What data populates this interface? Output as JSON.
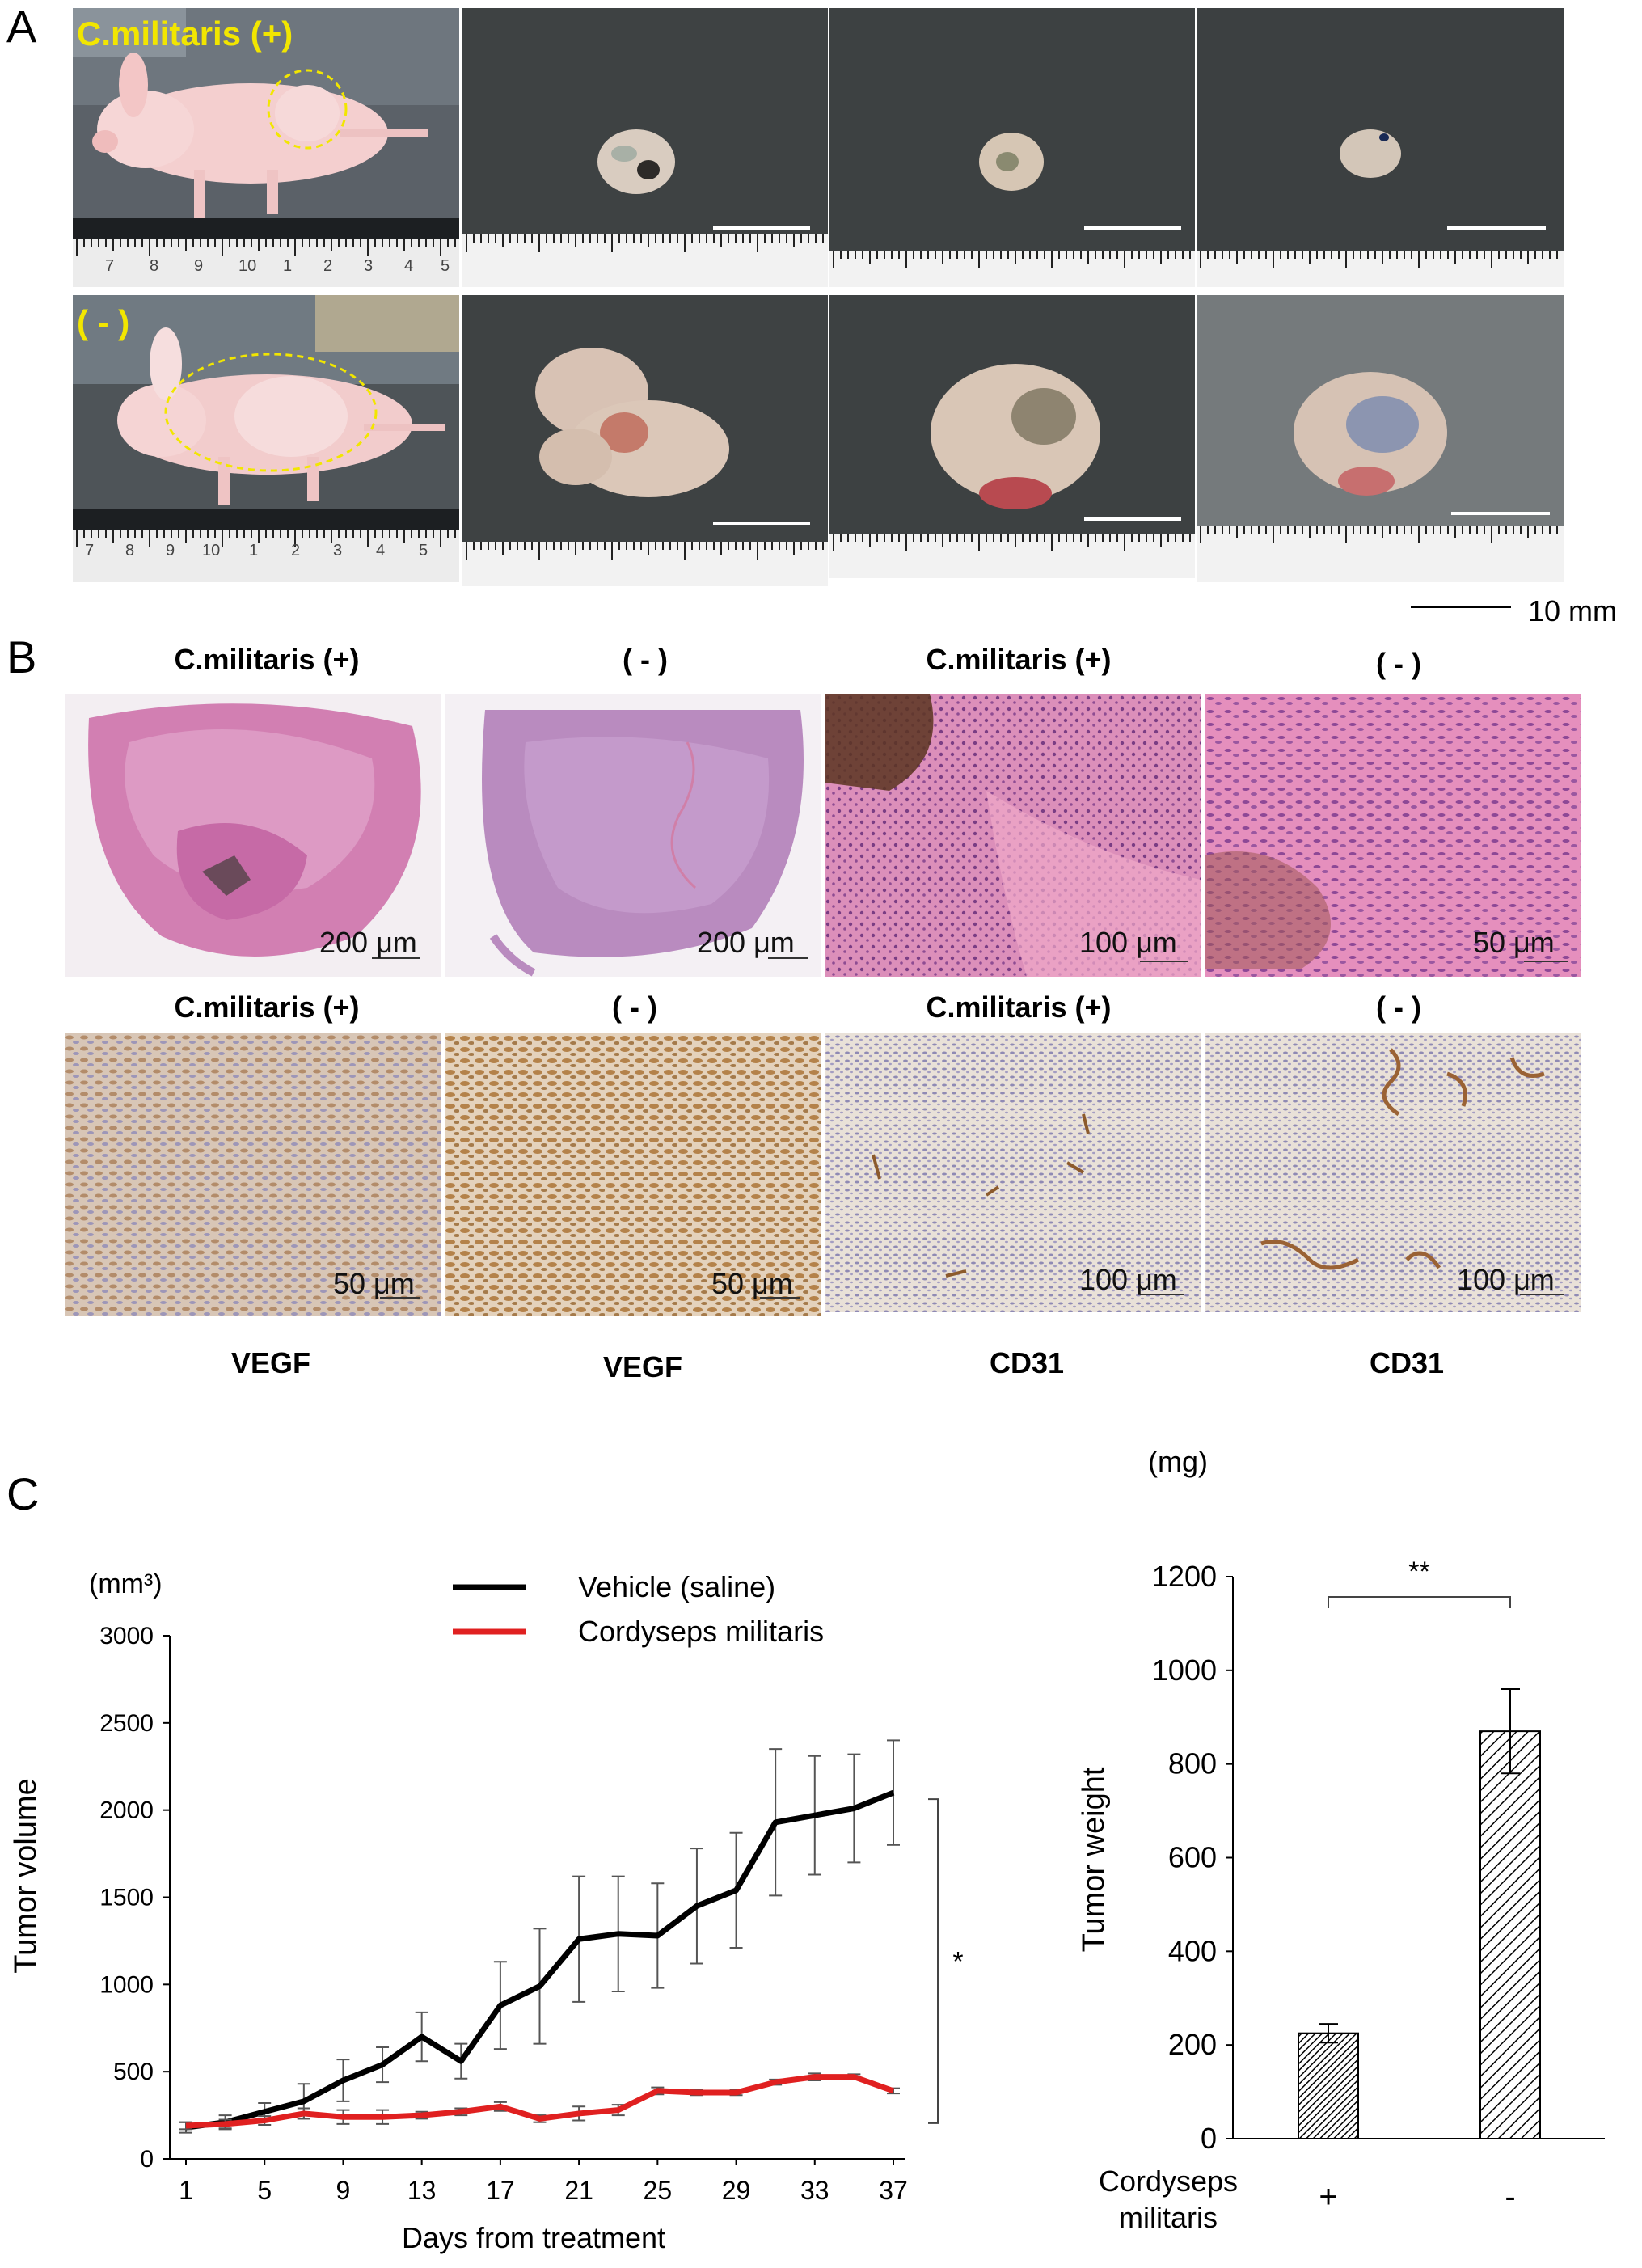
{
  "panelA": {
    "letter": "A",
    "label_plus": "C.militaris (+)",
    "label_minus": "( - )",
    "scale_text": "10 mm",
    "ruler_numbers_top": [
      "7",
      "8",
      "9",
      "10",
      "1",
      "2",
      "3",
      "4",
      "5"
    ],
    "ruler_numbers_bottom": [
      "7",
      "8",
      "9",
      "10",
      "1",
      "2",
      "3",
      "4",
      "5"
    ]
  },
  "panelB": {
    "letter": "B",
    "row1_titles": [
      "C.militaris (+)",
      "( - )",
      "C.militaris (+)",
      "( - )"
    ],
    "row1_scales": [
      "200 μm",
      "200 μm",
      "100 μm",
      "50 μm"
    ],
    "row2_titles": [
      "C.militaris (+)",
      "( - )",
      "C.militaris (+)",
      "( - )"
    ],
    "row2_scales": [
      "50 μm",
      "50 μm",
      "100 μm",
      "100 μm"
    ],
    "stains": [
      "VEGF",
      "VEGF",
      "CD31",
      "CD31"
    ]
  },
  "panelC": {
    "letter": "C"
  },
  "chart_data": [
    {
      "type": "line",
      "unit_label": "(mm³)",
      "ylabel": "Tumor volume",
      "xlabel": "Days from treatment",
      "xlim": [
        1,
        37
      ],
      "ylim": [
        0,
        3000
      ],
      "xticks": [
        1,
        5,
        9,
        13,
        17,
        21,
        25,
        29,
        33,
        37
      ],
      "yticks": [
        0,
        500,
        1000,
        1500,
        2000,
        2500,
        3000
      ],
      "x": [
        1,
        3,
        5,
        7,
        9,
        11,
        13,
        15,
        17,
        19,
        21,
        23,
        25,
        27,
        29,
        31,
        33,
        35,
        37
      ],
      "significance": "*",
      "series": [
        {
          "name": "Vehicle (saline)",
          "color": "#000000",
          "values": [
            180,
            210,
            270,
            330,
            450,
            540,
            700,
            560,
            880,
            990,
            1260,
            1290,
            1280,
            1450,
            1540,
            1930,
            1970,
            2010,
            2100
          ],
          "errors": [
            30,
            40,
            50,
            100,
            120,
            100,
            140,
            100,
            250,
            330,
            360,
            330,
            300,
            330,
            330,
            420,
            340,
            310,
            300
          ]
        },
        {
          "name": "Cordyseps militaris",
          "color": "#e02020",
          "values": [
            190,
            200,
            220,
            260,
            240,
            240,
            250,
            270,
            300,
            230,
            260,
            280,
            390,
            380,
            380,
            440,
            470,
            470,
            390
          ],
          "errors": [
            20,
            25,
            25,
            30,
            40,
            40,
            20,
            20,
            25,
            20,
            40,
            30,
            20,
            15,
            15,
            15,
            20,
            15,
            15
          ]
        }
      ]
    },
    {
      "type": "bar",
      "unit_label": "(mg)",
      "ylabel": "Tumor weight",
      "xlabel": "Cordyseps\nmilitaris",
      "xlabel_lines": [
        "Cordyseps",
        "militaris"
      ],
      "categories": [
        "+",
        "-"
      ],
      "values": [
        225,
        870
      ],
      "errors": [
        20,
        90
      ],
      "ylim": [
        0,
        1200
      ],
      "yticks": [
        0,
        200,
        400,
        600,
        800,
        1000,
        1200
      ],
      "significance": "**"
    }
  ]
}
